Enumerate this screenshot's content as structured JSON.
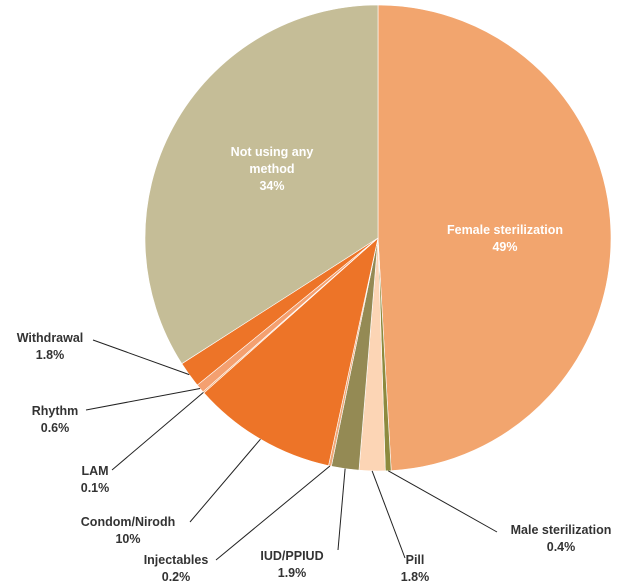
{
  "chart_data": {
    "type": "pie",
    "categories": [
      "Female sterilization",
      "Male sterilization",
      "Pill",
      "IUD/PPIUD",
      "Injectables",
      "Condom/Nirodh",
      "LAM",
      "Rhythm",
      "Withdrawal",
      "Not using any method"
    ],
    "values": [
      49,
      0.4,
      1.8,
      1.9,
      0.2,
      10,
      0.1,
      0.6,
      1.8,
      34
    ],
    "value_labels": [
      "49%",
      "0.4%",
      "1.8%",
      "1.9%",
      "0.2%",
      "10%",
      "0.1%",
      "0.6%",
      "1.8%",
      "34%"
    ],
    "colors": [
      "#f2a56e",
      "#8d8a3e",
      "#fcd5b5",
      "#948a54",
      "#efa878",
      "#ed7428",
      "#f2a56e",
      "#f4a070",
      "#ed7428",
      "#c5bd97"
    ]
  }
}
